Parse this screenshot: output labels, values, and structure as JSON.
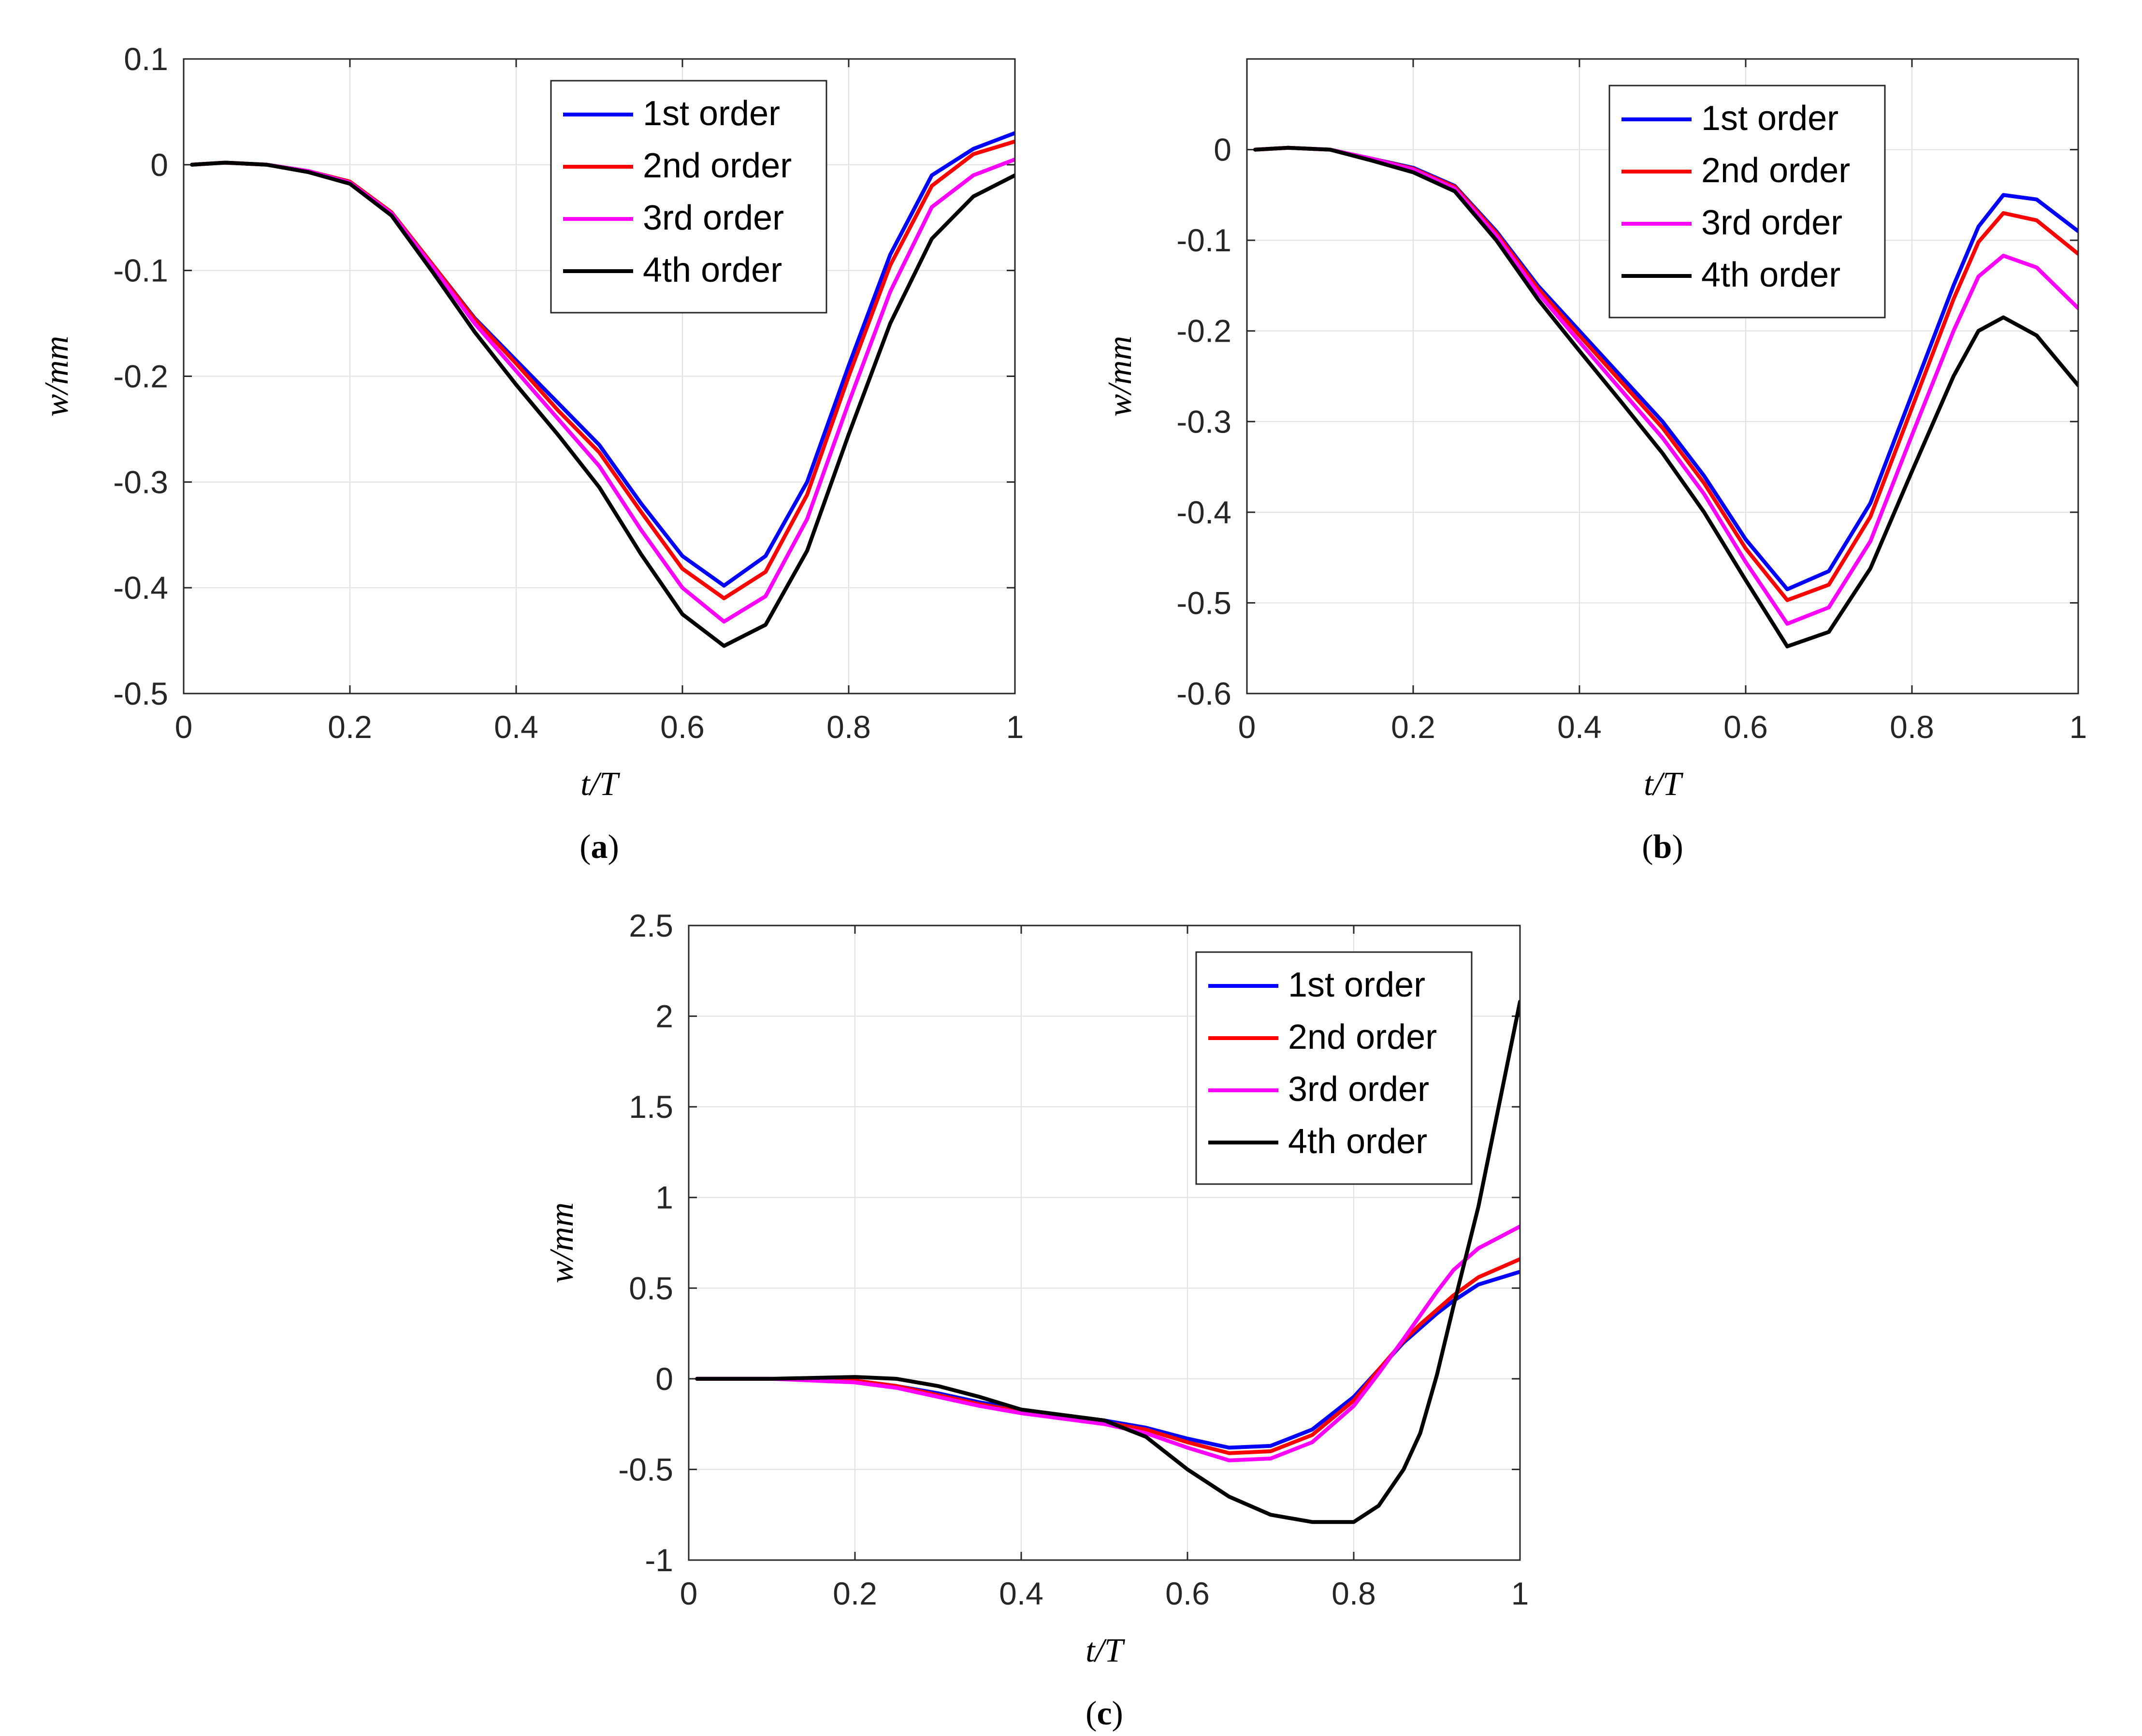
{
  "colors": {
    "series": [
      "#0000ff",
      "#ff0000",
      "#ff00ff",
      "#000000"
    ],
    "grid": "#e0e0e0",
    "axis": "#262626"
  },
  "chart_data": [
    {
      "id": "a",
      "type": "line",
      "panel_label": "a",
      "xlabel": "t/T",
      "ylabel": "w/mm",
      "xlim": [
        0,
        1
      ],
      "ylim": [
        -0.5,
        0.1
      ],
      "xticks": [
        0,
        0.2,
        0.4,
        0.6,
        0.8,
        1
      ],
      "xtick_labels": [
        "0",
        "0.2",
        "0.4",
        "0.6",
        "0.8",
        "1"
      ],
      "yticks": [
        -0.5,
        -0.4,
        -0.3,
        -0.2,
        -0.1,
        0,
        0.1
      ],
      "ytick_labels": [
        "-0.5",
        "-0.4",
        "-0.3",
        "-0.2",
        "-0.1",
        "0",
        "0.1"
      ],
      "grid": true,
      "legend_position": "top-right",
      "x": [
        0.01,
        0.05,
        0.1,
        0.15,
        0.2,
        0.25,
        0.3,
        0.35,
        0.4,
        0.45,
        0.5,
        0.55,
        0.6,
        0.65,
        0.7,
        0.75,
        0.8,
        0.85,
        0.9,
        0.95,
        1.0
      ],
      "series": [
        {
          "name": "1st order",
          "values": [
            0,
            0.002,
            0,
            -0.006,
            -0.016,
            -0.045,
            -0.095,
            -0.145,
            -0.185,
            -0.225,
            -0.265,
            -0.32,
            -0.37,
            -0.398,
            -0.37,
            -0.3,
            -0.19,
            -0.085,
            -0.01,
            0.015,
            0.03
          ]
        },
        {
          "name": "2nd order",
          "values": [
            0,
            0.002,
            0,
            -0.006,
            -0.016,
            -0.045,
            -0.095,
            -0.146,
            -0.188,
            -0.232,
            -0.272,
            -0.328,
            -0.382,
            -0.41,
            -0.385,
            -0.312,
            -0.2,
            -0.095,
            -0.02,
            0.01,
            0.022
          ]
        },
        {
          "name": "3rd order",
          "values": [
            0,
            0.002,
            0,
            -0.006,
            -0.017,
            -0.046,
            -0.097,
            -0.15,
            -0.195,
            -0.24,
            -0.285,
            -0.345,
            -0.4,
            -0.432,
            -0.408,
            -0.335,
            -0.225,
            -0.12,
            -0.04,
            -0.01,
            0.005
          ]
        },
        {
          "name": "4th order",
          "values": [
            0,
            0.002,
            0,
            -0.007,
            -0.018,
            -0.048,
            -0.102,
            -0.158,
            -0.208,
            -0.255,
            -0.305,
            -0.368,
            -0.425,
            -0.455,
            -0.435,
            -0.365,
            -0.255,
            -0.15,
            -0.07,
            -0.03,
            -0.01
          ]
        }
      ]
    },
    {
      "id": "b",
      "type": "line",
      "panel_label": "b",
      "xlabel": "t/T",
      "ylabel": "w/mm",
      "xlim": [
        0,
        1
      ],
      "ylim": [
        -0.6,
        0.1
      ],
      "xticks": [
        0,
        0.2,
        0.4,
        0.6,
        0.8,
        1
      ],
      "xtick_labels": [
        "0",
        "0.2",
        "0.4",
        "0.6",
        "0.8",
        "1"
      ],
      "yticks": [
        -0.6,
        -0.5,
        -0.4,
        -0.3,
        -0.2,
        -0.1,
        0
      ],
      "ytick_labels": [
        "-0.6",
        "-0.5",
        "-0.4",
        "-0.3",
        "-0.2",
        "-0.1",
        "0"
      ],
      "grid": true,
      "legend_position": "top-right",
      "x": [
        0.01,
        0.05,
        0.1,
        0.15,
        0.2,
        0.25,
        0.3,
        0.35,
        0.4,
        0.45,
        0.5,
        0.55,
        0.6,
        0.65,
        0.7,
        0.75,
        0.8,
        0.85,
        0.88,
        0.91,
        0.95,
        1.0
      ],
      "series": [
        {
          "name": "1st order",
          "values": [
            0,
            0.002,
            0,
            -0.01,
            -0.02,
            -0.04,
            -0.09,
            -0.15,
            -0.2,
            -0.25,
            -0.3,
            -0.36,
            -0.43,
            -0.485,
            -0.465,
            -0.39,
            -0.27,
            -0.15,
            -0.085,
            -0.05,
            -0.055,
            -0.09
          ]
        },
        {
          "name": "2nd order",
          "values": [
            0,
            0.002,
            0,
            -0.01,
            -0.021,
            -0.041,
            -0.092,
            -0.153,
            -0.205,
            -0.256,
            -0.307,
            -0.368,
            -0.44,
            -0.497,
            -0.48,
            -0.405,
            -0.285,
            -0.165,
            -0.102,
            -0.07,
            -0.078,
            -0.115
          ]
        },
        {
          "name": "3rd order",
          "values": [
            0,
            0.002,
            0,
            -0.01,
            -0.022,
            -0.043,
            -0.095,
            -0.158,
            -0.212,
            -0.265,
            -0.318,
            -0.38,
            -0.455,
            -0.523,
            -0.505,
            -0.432,
            -0.315,
            -0.2,
            -0.14,
            -0.117,
            -0.13,
            -0.175
          ]
        },
        {
          "name": "4th order",
          "values": [
            0,
            0.002,
            0,
            -0.012,
            -0.025,
            -0.046,
            -0.1,
            -0.165,
            -0.222,
            -0.278,
            -0.335,
            -0.4,
            -0.475,
            -0.548,
            -0.532,
            -0.462,
            -0.355,
            -0.25,
            -0.2,
            -0.185,
            -0.205,
            -0.26
          ]
        }
      ]
    },
    {
      "id": "c",
      "type": "line",
      "panel_label": "c",
      "xlabel": "t/T",
      "ylabel": "w/mm",
      "xlim": [
        0,
        1
      ],
      "ylim": [
        -1,
        2.5
      ],
      "xticks": [
        0,
        0.2,
        0.4,
        0.6,
        0.8,
        1
      ],
      "xtick_labels": [
        "0",
        "0.2",
        "0.4",
        "0.6",
        "0.8",
        "1"
      ],
      "yticks": [
        -1,
        -0.5,
        0,
        0.5,
        1,
        1.5,
        2,
        2.5
      ],
      "ytick_labels": [
        "-1",
        "-0.5",
        "0",
        "0.5",
        "1",
        "1.5",
        "2",
        "2.5"
      ],
      "grid": true,
      "legend_position": "top-right",
      "x": [
        0.01,
        0.1,
        0.2,
        0.25,
        0.3,
        0.35,
        0.4,
        0.45,
        0.5,
        0.55,
        0.6,
        0.65,
        0.7,
        0.75,
        0.8,
        0.83,
        0.86,
        0.88,
        0.9,
        0.92,
        0.95,
        1.0
      ],
      "series": [
        {
          "name": "1st order",
          "values": [
            0,
            0,
            -0.01,
            -0.04,
            -0.08,
            -0.13,
            -0.17,
            -0.2,
            -0.23,
            -0.27,
            -0.33,
            -0.38,
            -0.37,
            -0.28,
            -0.1,
            0.05,
            0.2,
            0.28,
            0.36,
            0.43,
            0.52,
            0.59
          ]
        },
        {
          "name": "2nd order",
          "values": [
            0,
            0,
            -0.01,
            -0.04,
            -0.09,
            -0.14,
            -0.18,
            -0.21,
            -0.24,
            -0.28,
            -0.35,
            -0.41,
            -0.4,
            -0.31,
            -0.12,
            0.05,
            0.21,
            0.3,
            0.38,
            0.46,
            0.56,
            0.66
          ]
        },
        {
          "name": "3rd order",
          "values": [
            0,
            0,
            -0.02,
            -0.05,
            -0.1,
            -0.15,
            -0.19,
            -0.22,
            -0.25,
            -0.3,
            -0.38,
            -0.45,
            -0.44,
            -0.35,
            -0.15,
            0.03,
            0.22,
            0.35,
            0.48,
            0.6,
            0.72,
            0.84
          ]
        },
        {
          "name": "4th order",
          "values": [
            0,
            0,
            0.01,
            0,
            -0.04,
            -0.1,
            -0.17,
            -0.2,
            -0.23,
            -0.32,
            -0.5,
            -0.65,
            -0.75,
            -0.79,
            -0.79,
            -0.7,
            -0.5,
            -0.3,
            0.02,
            0.4,
            0.95,
            2.08
          ]
        }
      ]
    }
  ]
}
